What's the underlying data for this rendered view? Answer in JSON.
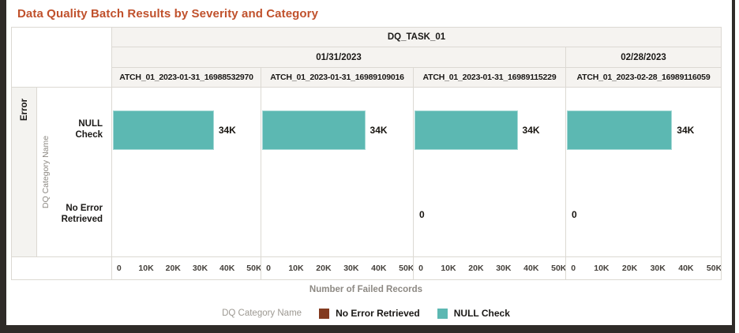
{
  "title": "Data Quality Batch Results by Severity and Category",
  "trellis": {
    "task_header": "DQ_TASK_01",
    "date_groups": [
      {
        "label": "01/31/2023"
      },
      {
        "label": "02/28/2023"
      }
    ],
    "batch_columns": [
      "ATCH_01_2023-01-31_16988532970",
      "ATCH_01_2023-01-31_16989109016",
      "ATCH_01_2023-01-31_16989115229",
      "ATCH_01_2023-02-28_16989116059"
    ],
    "row_group_label": "Error",
    "y_axis_label": "DQ Category Name",
    "row_categories": [
      "NULL Check",
      "No Error Retrieved"
    ]
  },
  "chart_data": {
    "type": "bar",
    "orientation": "horizontal",
    "title": "Data Quality Batch Results by Severity and Category",
    "xlabel": "Number of Failed Records",
    "ylabel": "DQ Category Name",
    "xlim": [
      0,
      50000
    ],
    "x_ticks": [
      "0",
      "10K",
      "20K",
      "30K",
      "40K",
      "50K"
    ],
    "grid": false,
    "legend_position": "bottom",
    "facets": [
      {
        "task": "DQ_TASK_01",
        "date": "01/31/2023",
        "batch": "ATCH_01_2023-01-31_16988532970",
        "bars": [
          {
            "category": "NULL Check",
            "value": 34000,
            "label": "34K"
          },
          {
            "category": "No Error Retrieved",
            "value": null,
            "label": ""
          }
        ]
      },
      {
        "task": "DQ_TASK_01",
        "date": "01/31/2023",
        "batch": "ATCH_01_2023-01-31_16989109016",
        "bars": [
          {
            "category": "NULL Check",
            "value": 34000,
            "label": "34K"
          },
          {
            "category": "No Error Retrieved",
            "value": null,
            "label": ""
          }
        ]
      },
      {
        "task": "DQ_TASK_01",
        "date": "01/31/2023",
        "batch": "ATCH_01_2023-01-31_16989115229",
        "bars": [
          {
            "category": "NULL Check",
            "value": 34000,
            "label": "34K"
          },
          {
            "category": "No Error Retrieved",
            "value": 0,
            "label": "0"
          }
        ]
      },
      {
        "task": "DQ_TASK_01",
        "date": "02/28/2023",
        "batch": "ATCH_01_2023-02-28_16989116059",
        "bars": [
          {
            "category": "NULL Check",
            "value": 34000,
            "label": "34K"
          },
          {
            "category": "No Error Retrieved",
            "value": 0,
            "label": "0"
          }
        ]
      }
    ]
  },
  "legend": {
    "title": "DQ Category Name",
    "items": [
      {
        "label": "No Error Retrieved",
        "color": "#833a1f"
      },
      {
        "label": "NULL Check",
        "color": "#5cb8b2"
      }
    ]
  },
  "colors": {
    "title": "#c0512c",
    "frame": "#2f2b28",
    "header_bg": "#f5f3f0",
    "border": "#dcd9d3",
    "bar": "#5cb8b2",
    "text_dark": "#1a1816",
    "text_muted": "#8d8983"
  }
}
